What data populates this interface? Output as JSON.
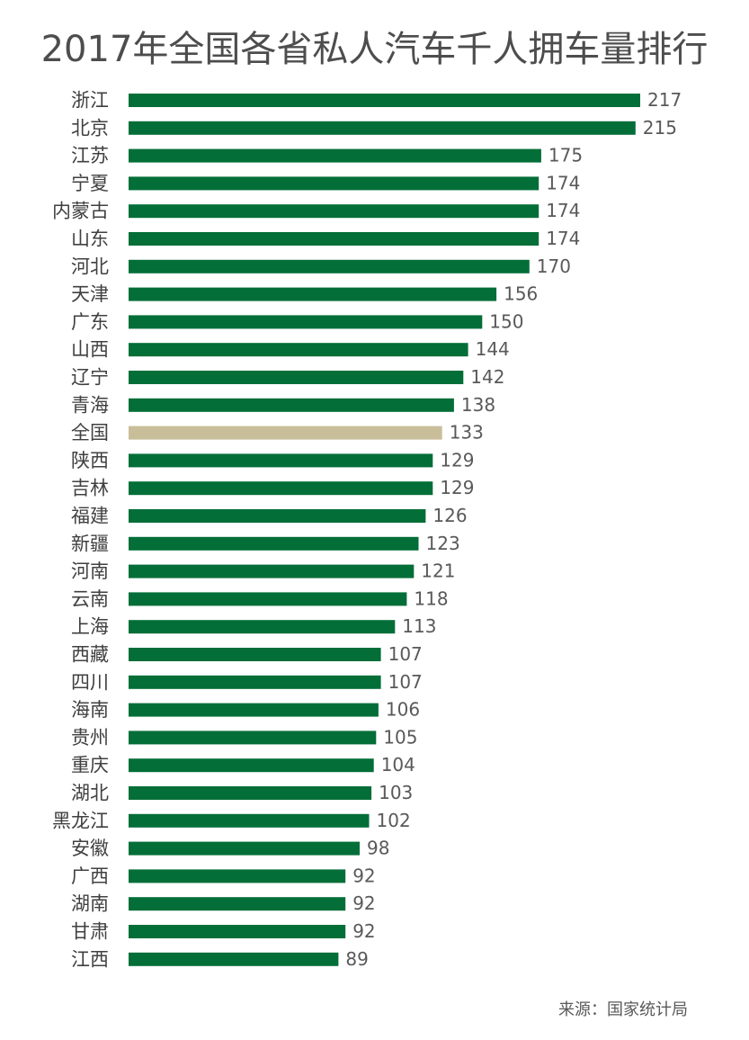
{
  "chart_data": {
    "type": "bar",
    "orientation": "horizontal",
    "title": "2017年全国各省私人汽车千人拥车量排行",
    "categories": [
      "浙江",
      "北京",
      "江苏",
      "宁夏",
      "内蒙古",
      "山东",
      "河北",
      "天津",
      "广东",
      "山西",
      "辽宁",
      "青海",
      "全国",
      "陕西",
      "吉林",
      "福建",
      "新疆",
      "河南",
      "云南",
      "上海",
      "西藏",
      "四川",
      "海南",
      "贵州",
      "重庆",
      "湖北",
      "黑龙江",
      "安徽",
      "广西",
      "湖南",
      "甘肃",
      "江西"
    ],
    "values": [
      217,
      215,
      175,
      174,
      174,
      174,
      170,
      156,
      150,
      144,
      142,
      138,
      133,
      129,
      129,
      126,
      123,
      121,
      118,
      113,
      107,
      107,
      106,
      105,
      104,
      103,
      102,
      98,
      92,
      92,
      92,
      89
    ],
    "highlight_category": "全国",
    "colors": {
      "bar": "#036e38",
      "highlight": "#c9be9a"
    },
    "xlim": [
      0,
      217
    ],
    "grid": false,
    "legend": "none",
    "source": "来源：国家统计局"
  }
}
